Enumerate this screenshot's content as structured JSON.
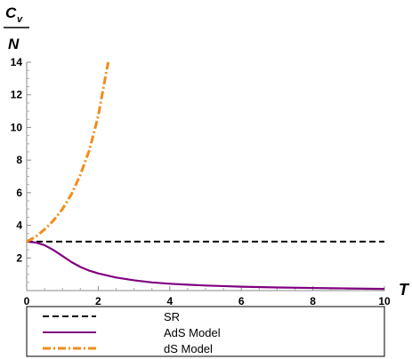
{
  "chart_data": {
    "type": "line",
    "ylabel_numerator": "C",
    "ylabel_subscript": "v",
    "ylabel_denominator": "N",
    "xlabel": "T",
    "xlim": [
      0,
      10
    ],
    "ylim": [
      0,
      14
    ],
    "xticks": [
      "0",
      "2",
      "4",
      "6",
      "8",
      "10"
    ],
    "yticks": [
      "2",
      "4",
      "6",
      "8",
      "10",
      "12",
      "14"
    ],
    "grid": false,
    "legend_position": "bottom",
    "series": [
      {
        "name": "SR",
        "color": "#000000",
        "style": "dashed",
        "x": [
          0,
          10
        ],
        "y": [
          3,
          3
        ]
      },
      {
        "name": "AdS Model",
        "color": "#800080",
        "style": "solid",
        "x": [
          0,
          0.25,
          0.5,
          0.75,
          1,
          1.25,
          1.5,
          1.75,
          2,
          2.5,
          3,
          3.5,
          4,
          4.5,
          5,
          6,
          7,
          8,
          9,
          10
        ],
        "y": [
          3.0,
          2.95,
          2.78,
          2.48,
          2.12,
          1.75,
          1.45,
          1.22,
          1.05,
          0.8,
          0.63,
          0.5,
          0.42,
          0.36,
          0.31,
          0.24,
          0.19,
          0.16,
          0.13,
          0.1
        ]
      },
      {
        "name": "dS Model",
        "color": "#f28c1c",
        "style": "dashdot",
        "x": [
          0,
          0.25,
          0.5,
          0.75,
          1,
          1.25,
          1.5,
          1.75,
          2,
          2.1,
          2.2,
          2.28
        ],
        "y": [
          3.0,
          3.3,
          3.75,
          4.3,
          5.0,
          5.9,
          7.1,
          8.6,
          10.7,
          11.9,
          13.1,
          14.0
        ]
      }
    ]
  }
}
